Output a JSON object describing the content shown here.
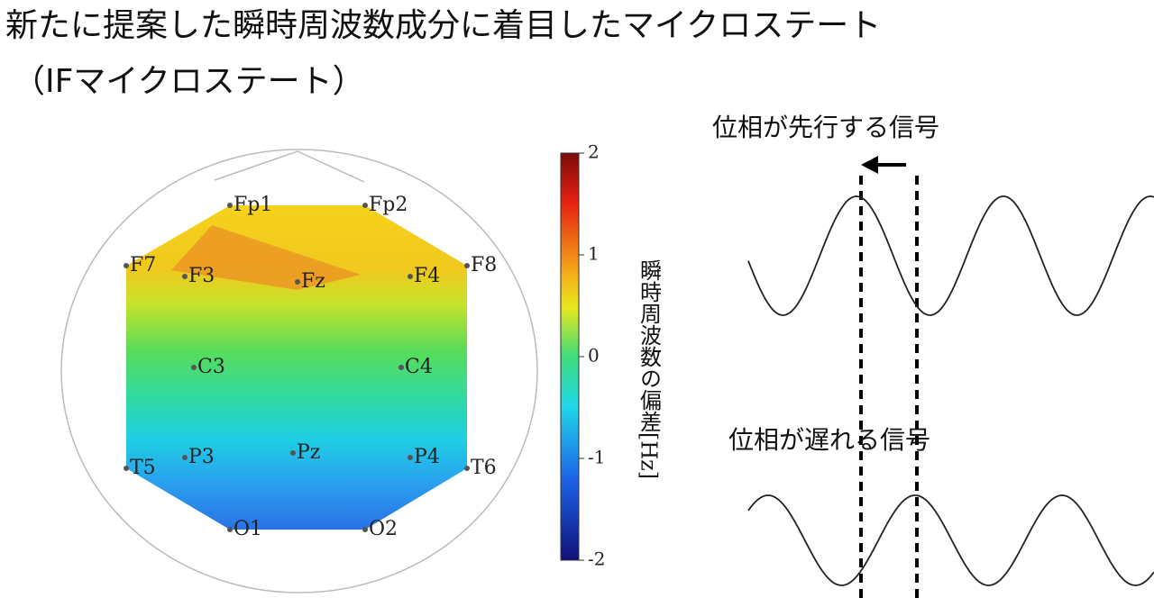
{
  "header": {
    "title_line1": "新たに提案した瞬時周波数成分に着目したマイクロステート",
    "title_line2": "（IFマイクロステート）"
  },
  "topomap": {
    "electrodes": [
      "Fp1",
      "Fp2",
      "F7",
      "F3",
      "Fz",
      "F4",
      "F8",
      "C3",
      "C4",
      "T5",
      "P3",
      "Pz",
      "P4",
      "T6",
      "O1",
      "O2"
    ]
  },
  "colorbar": {
    "label": "瞬時周波数の偏差[Hz]",
    "ticks": [
      2,
      1,
      0,
      -1,
      -2
    ]
  },
  "signals": {
    "leading": "位相が先行する信号",
    "lagging": "位相が遅れる信号"
  }
}
